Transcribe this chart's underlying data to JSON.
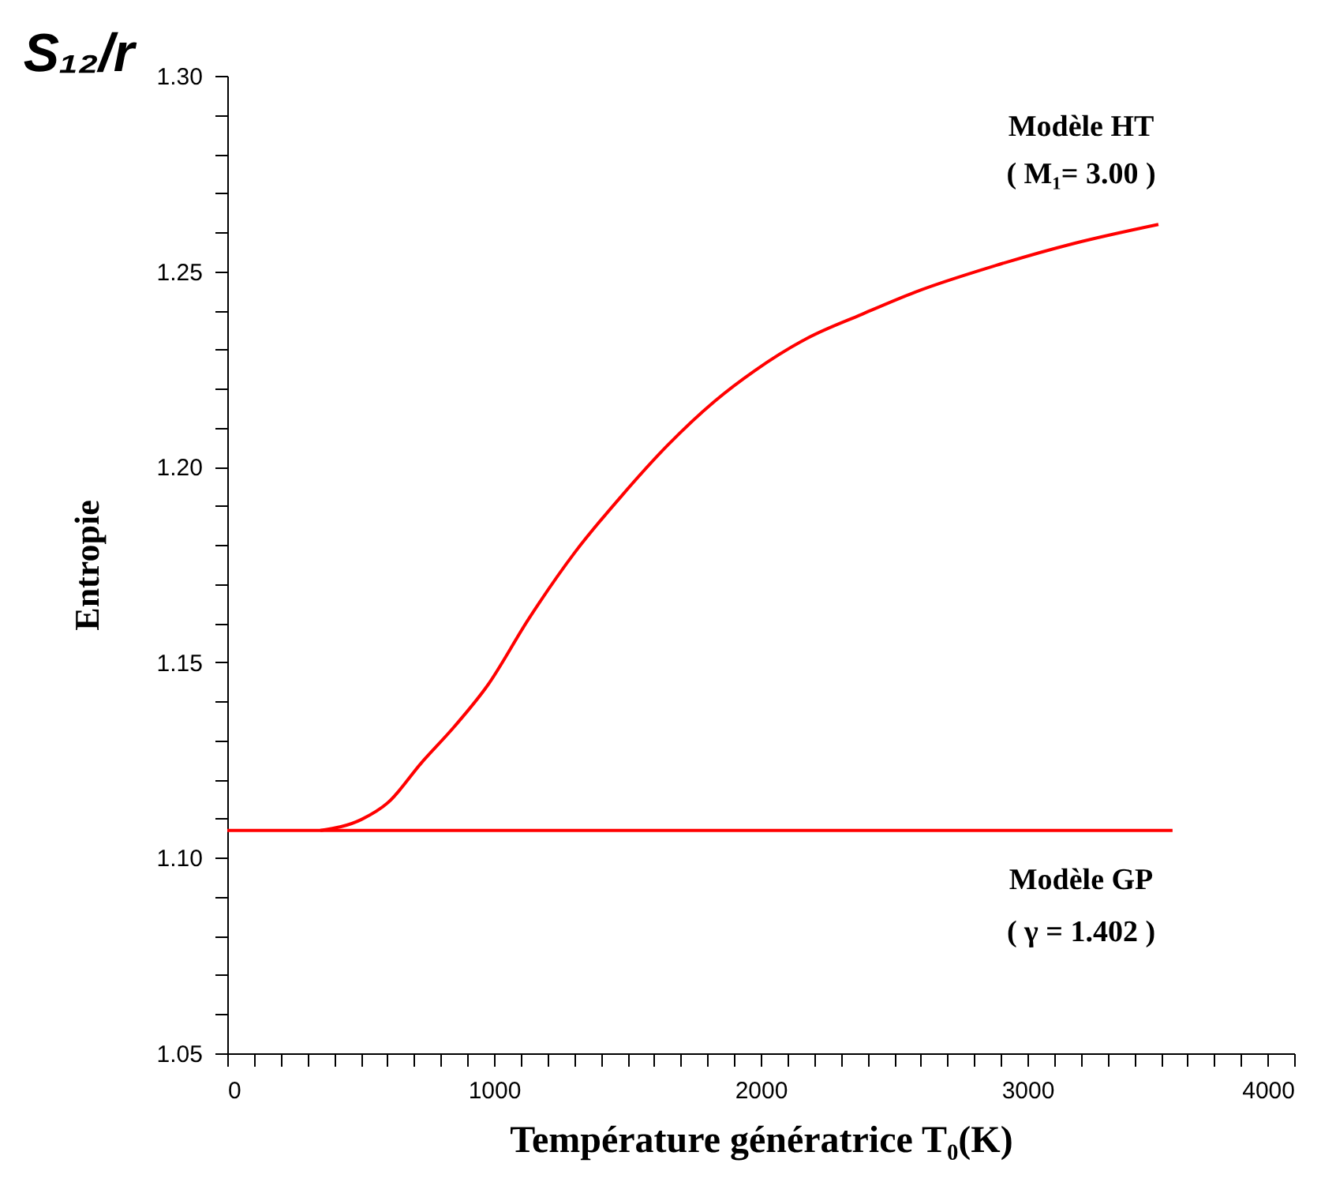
{
  "chart_data": {
    "type": "line",
    "xlabel": "Température génératrice T₀(K)",
    "ylabel": "Entropie",
    "annotations": [
      "S₁₂/r",
      "( M₁= 3.00 )",
      "( γ = 1.402 )"
    ],
    "series": [
      {
        "name": "Modèle HT",
        "color": "#ff0000",
        "x": [
          349,
          503,
          604,
          728,
          852,
          976,
          1130,
          1302,
          1479,
          1651,
          1828,
          1976,
          2178,
          2379,
          2580,
          2882,
          3178,
          3491
        ],
        "values": [
          1.107,
          1.1098,
          1.1142,
          1.1243,
          1.1336,
          1.1441,
          1.1611,
          1.178,
          1.1926,
          1.2055,
          1.2168,
          1.2245,
          1.233,
          1.239,
          1.2447,
          1.2515,
          1.2572,
          1.262
        ]
      },
      {
        "name": "Modèle GP",
        "color": "#ff0000",
        "x": [
          0,
          3544
        ],
        "values": [
          1.107,
          1.107
        ]
      }
    ],
    "xlim": [
      0,
      4000
    ],
    "ylim": [
      1.05,
      1.3
    ],
    "xticks": [
      0,
      1000,
      2000,
      3000,
      4000,
      {
        "value": 100,
        "label": null
      },
      {
        "value": 200,
        "label": null
      },
      {
        "value": 300,
        "label": null
      },
      {
        "value": 400,
        "label": null
      },
      {
        "value": 500,
        "label": null
      },
      {
        "value": 600,
        "label": null
      },
      {
        "value": 700,
        "label": null
      },
      {
        "value": 800,
        "label": null
      },
      {
        "value": 900,
        "label": null
      },
      {
        "value": 1100,
        "label": null
      },
      {
        "value": 1200,
        "label": null
      },
      {
        "value": 1300,
        "label": null
      },
      {
        "value": 1400,
        "label": null
      },
      {
        "value": 1500,
        "label": null
      },
      {
        "value": 1600,
        "label": null
      },
      {
        "value": 1700,
        "label": null
      },
      {
        "value": 1800,
        "label": null
      },
      {
        "value": 1900,
        "label": null
      },
      {
        "value": 2100,
        "label": null
      },
      {
        "value": 2200,
        "label": null
      },
      {
        "value": 2300,
        "label": null
      },
      {
        "value": 2400,
        "label": null
      },
      {
        "value": 2500,
        "label": null
      },
      {
        "value": 2600,
        "label": null
      },
      {
        "value": 2700,
        "label": null
      },
      {
        "value": 2800,
        "label": null
      },
      {
        "value": 2900,
        "label": null
      },
      {
        "value": 3100,
        "label": null
      },
      {
        "value": 3200,
        "label": null
      },
      {
        "value": 3300,
        "label": null
      },
      {
        "value": 3400,
        "label": null
      },
      {
        "value": 3500,
        "label": null
      },
      {
        "value": 3600,
        "label": null
      },
      {
        "value": 3700,
        "label": null
      },
      {
        "value": 3800,
        "label": null
      },
      {
        "value": 3900,
        "label": null
      }
    ],
    "yticks": [
      {
        "value": 1.05,
        "label": "1.05"
      },
      {
        "value": 1.1,
        "label": "1.10"
      },
      {
        "value": 1.15,
        "label": "1.15"
      },
      {
        "value": 1.2,
        "label": "1.20"
      },
      {
        "value": 1.25,
        "label": "1.25"
      },
      {
        "value": 1.3,
        "label": "1.30"
      },
      {
        "value": 1.06,
        "label": null
      },
      {
        "value": 1.07,
        "label": null
      },
      {
        "value": 1.08,
        "label": null
      },
      {
        "value": 1.09,
        "label": null
      },
      {
        "value": 1.11,
        "label": null
      },
      {
        "value": 1.12,
        "label": null
      },
      {
        "value": 1.13,
        "label": null
      },
      {
        "value": 1.14,
        "label": null
      },
      {
        "value": 1.16,
        "label": null
      },
      {
        "value": 1.17,
        "label": null
      },
      {
        "value": 1.18,
        "label": null
      },
      {
        "value": 1.19,
        "label": null
      },
      {
        "value": 1.21,
        "label": null
      },
      {
        "value": 1.22,
        "label": null
      },
      {
        "value": 1.23,
        "label": null
      },
      {
        "value": 1.24,
        "label": null
      },
      {
        "value": 1.26,
        "label": null
      },
      {
        "value": 1.27,
        "label": null
      },
      {
        "value": 1.28,
        "label": null
      },
      {
        "value": 1.29,
        "label": null
      }
    ],
    "grid": false,
    "marker": "none",
    "line_style": "solid"
  }
}
